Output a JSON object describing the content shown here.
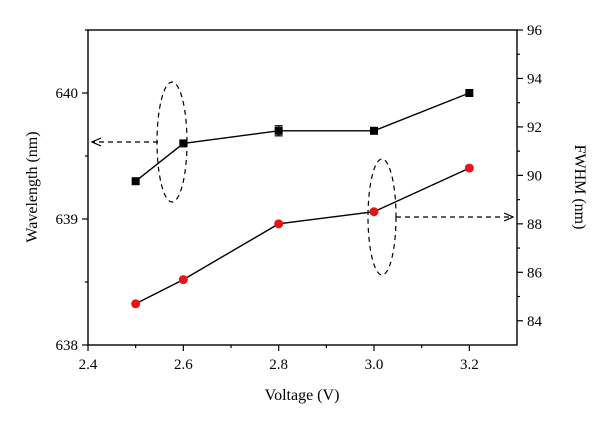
{
  "chart_data": {
    "type": "line",
    "xlabel": "Voltage (V)",
    "ylabel_left": "Wavelength (nm)",
    "ylabel_right": "FWHM (nm)",
    "xlim": [
      2.4,
      3.3
    ],
    "ylim_left": [
      638,
      640.5
    ],
    "ylim_right": [
      83,
      96
    ],
    "x_ticks": [
      "2.4",
      "2.6",
      "2.8",
      "3.0",
      "3.2"
    ],
    "y_left_ticks": [
      "638",
      "639",
      "640"
    ],
    "y_right_ticks": [
      "84",
      "86",
      "88",
      "90",
      "92",
      "94",
      "96"
    ],
    "grid": false,
    "series": [
      {
        "axis": "left",
        "marker": "square",
        "color": "#000000",
        "x": [
          2.5,
          2.6,
          2.8,
          3.0,
          3.2
        ],
        "y": [
          639.3,
          639.6,
          639.7,
          639.7,
          640.0
        ],
        "err": [
          0.0,
          0.0,
          0.04,
          0.02,
          0.0
        ]
      },
      {
        "axis": "right",
        "marker": "circle",
        "color": "#e8141b",
        "x": [
          2.5,
          2.6,
          2.8,
          3.0,
          3.2
        ],
        "y": [
          84.7,
          85.7,
          88.0,
          88.5,
          90.3
        ]
      }
    ]
  }
}
